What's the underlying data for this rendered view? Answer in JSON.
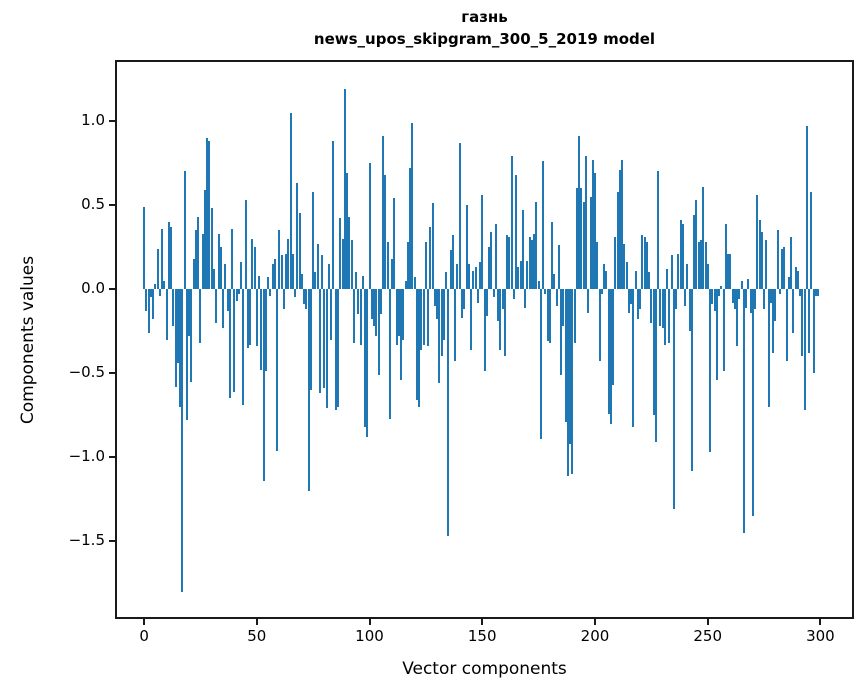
{
  "figure": {
    "title_line1": "газнь",
    "title_line2": "news_upos_skipgram_300_5_2019 model",
    "xlabel": "Vector components",
    "ylabel": "Components values",
    "bar_color": "#1f77b4",
    "spine_color": "#1a1a1a",
    "x_ticks": [
      {
        "value": 0,
        "label": "0"
      },
      {
        "value": 50,
        "label": "50"
      },
      {
        "value": 100,
        "label": "100"
      },
      {
        "value": 150,
        "label": "150"
      },
      {
        "value": 200,
        "label": "200"
      },
      {
        "value": 250,
        "label": "250"
      },
      {
        "value": 300,
        "label": "300"
      }
    ],
    "y_ticks": [
      {
        "value": 1.0,
        "label": "1.0"
      },
      {
        "value": 0.5,
        "label": "0.5"
      },
      {
        "value": 0.0,
        "label": "0.0"
      },
      {
        "value": -0.5,
        "label": "−0.5"
      },
      {
        "value": -1.0,
        "label": "−1.0"
      },
      {
        "value": -1.5,
        "label": "−1.5"
      }
    ]
  },
  "chart_data": {
    "type": "bar",
    "title": "газнь — news_upos_skipgram_300_5_2019 model",
    "xlabel": "Vector components",
    "ylabel": "Components values",
    "xlim": [
      -12,
      314
    ],
    "ylim": [
      -1.95,
      1.35
    ],
    "grid": false,
    "legend": "none",
    "bar_color": "#1f77b4",
    "bar_width": 0.8,
    "x_is_component_index_0_to_299": true,
    "values": [
      0.49,
      -0.13,
      -0.26,
      -0.05,
      -0.18,
      0.03,
      0.24,
      -0.04,
      0.36,
      0.05,
      -0.3,
      0.4,
      0.37,
      -0.22,
      -0.58,
      -0.44,
      -0.7,
      -1.8,
      0.7,
      -0.78,
      -0.28,
      -0.55,
      0.18,
      0.35,
      0.43,
      -0.32,
      0.33,
      0.59,
      0.9,
      0.88,
      0.48,
      0.12,
      -0.2,
      0.33,
      0.25,
      -0.23,
      0.15,
      -0.13,
      -0.65,
      0.36,
      -0.61,
      -0.07,
      -0.03,
      0.16,
      -0.69,
      0.53,
      -0.35,
      -0.33,
      0.3,
      0.25,
      -0.34,
      0.08,
      -0.48,
      -1.14,
      -0.49,
      0.07,
      -0.04,
      0.15,
      0.18,
      -0.96,
      0.35,
      0.2,
      -0.12,
      0.21,
      0.3,
      1.05,
      0.21,
      -0.05,
      0.63,
      0.45,
      0.09,
      -0.09,
      -0.12,
      -1.2,
      -0.6,
      0.58,
      0.1,
      0.27,
      -0.62,
      0.2,
      -0.59,
      -0.71,
      0.15,
      -0.3,
      0.88,
      -0.72,
      -0.7,
      0.42,
      0.3,
      1.19,
      0.69,
      0.43,
      0.29,
      -0.32,
      0.1,
      -0.15,
      -0.33,
      0.08,
      -0.82,
      -0.88,
      0.75,
      -0.18,
      -0.22,
      -0.28,
      -0.51,
      -0.15,
      0.91,
      0.68,
      0.28,
      -0.77,
      0.18,
      0.54,
      -0.33,
      -0.28,
      -0.54,
      -0.3,
      0.05,
      0.28,
      0.72,
      0.99,
      0.07,
      -0.66,
      -0.7,
      -0.36,
      -0.33,
      0.28,
      -0.34,
      0.37,
      0.51,
      -0.1,
      -0.18,
      -0.56,
      -0.4,
      -0.3,
      0.1,
      -1.47,
      0.23,
      0.32,
      -0.43,
      0.15,
      0.87,
      -0.17,
      -0.12,
      0.5,
      0.15,
      -0.36,
      0.11,
      0.13,
      -0.08,
      0.16,
      0.56,
      -0.49,
      -0.16,
      0.25,
      0.34,
      -0.05,
      0.39,
      -0.19,
      -0.36,
      -0.12,
      -0.4,
      0.32,
      0.31,
      0.79,
      -0.06,
      0.68,
      0.13,
      0.17,
      0.47,
      -0.11,
      0.17,
      0.31,
      0.29,
      0.33,
      0.52,
      0.05,
      -0.89,
      0.76,
      -0.03,
      -0.31,
      -0.32,
      0.4,
      0.09,
      -0.1,
      0.26,
      -0.51,
      -0.22,
      -0.79,
      -1.11,
      -0.92,
      -1.1,
      -0.32,
      0.6,
      0.91,
      0.6,
      0.52,
      0.79,
      -0.14,
      0.55,
      0.77,
      0.69,
      0.28,
      -0.43,
      -0.03,
      0.15,
      0.11,
      -0.74,
      -0.8,
      -0.57,
      0.31,
      0.58,
      0.71,
      0.77,
      0.27,
      0.16,
      -0.14,
      -0.09,
      -0.82,
      0.11,
      -0.18,
      -0.12,
      0.32,
      0.31,
      0.28,
      0.1,
      -0.2,
      -0.75,
      -0.91,
      0.7,
      -0.22,
      -0.23,
      -0.33,
      0.12,
      -0.32,
      0.2,
      -1.31,
      -0.12,
      0.21,
      0.41,
      0.39,
      -0.1,
      0.15,
      -0.25,
      -1.08,
      0.44,
      0.53,
      0.28,
      0.29,
      0.61,
      0.28,
      0.15,
      -0.97,
      -0.09,
      -0.13,
      -0.54,
      -0.04,
      0.02,
      -0.49,
      0.39,
      0.21,
      0.21,
      -0.08,
      -0.12,
      -0.34,
      -0.06,
      0.05,
      -1.45,
      -0.11,
      0.06,
      -0.14,
      -1.35,
      -0.12,
      0.56,
      0.41,
      0.34,
      -0.12,
      0.29,
      -0.7,
      -0.08,
      -0.38,
      -0.19,
      0.35,
      -0.03,
      0.24,
      0.25,
      -0.43,
      0.07,
      0.31,
      -0.26,
      0.13,
      0.11,
      -0.04,
      -0.4,
      -0.72,
      0.97,
      -0.38,
      0.58,
      -0.5,
      -0.04,
      -0.04
    ]
  }
}
